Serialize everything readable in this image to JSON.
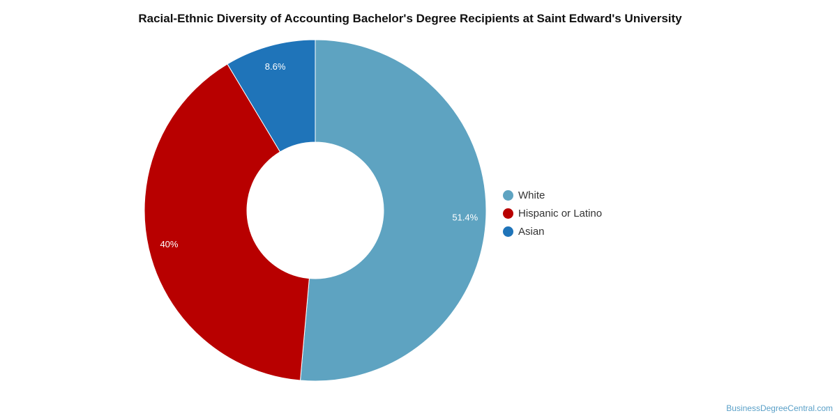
{
  "chart_data": {
    "type": "pie",
    "title": "Racial-Ethnic Diversity of Accounting Bachelor's Degree Recipients at Saint Edward's University",
    "donut": true,
    "legend_position": "right",
    "slices": [
      {
        "label": "White",
        "value": 51.4,
        "display": "51.4%",
        "color": "#5ea3c1"
      },
      {
        "label": "Hispanic or Latino",
        "value": 40,
        "display": "40%",
        "color": "#b80000"
      },
      {
        "label": "Asian",
        "value": 8.6,
        "display": "8.6%",
        "color": "#1f74b9"
      }
    ]
  },
  "watermark": "BusinessDegreeCentral.com"
}
